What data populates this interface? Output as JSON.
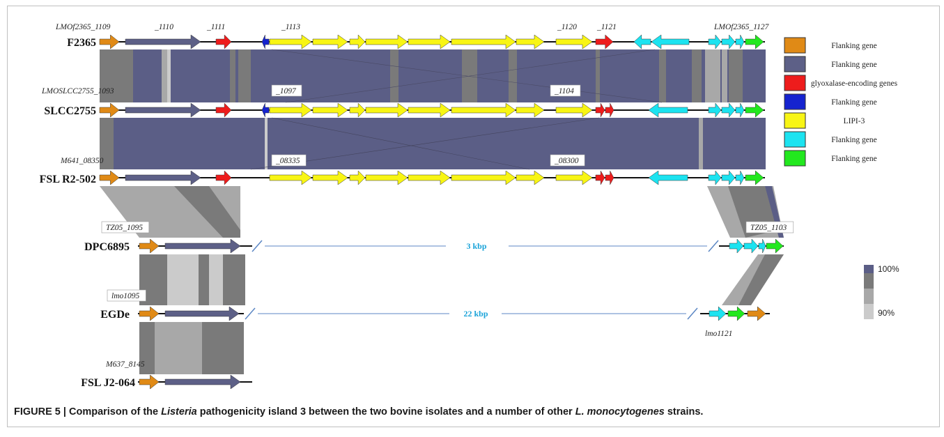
{
  "colors": {
    "orange": "#e08a16",
    "slate": "#5d6087",
    "red": "#ee1c1c",
    "blue": "#1523cf",
    "yellow": "#f8f514",
    "cyan": "#1ce3f0",
    "green": "#22e81e",
    "sim_dark": "#5b5e86",
    "sim_mid": "#7a7a7a",
    "sim_light": "#a8a8a8",
    "sim_pale": "#cbcbcb",
    "gap_line": "#5b86c4"
  },
  "strains": [
    {
      "name": "F2365",
      "locus_labels": [
        {
          "text": "LMOf2365_1109"
        },
        {
          "text": "_1110"
        },
        {
          "text": "_1111"
        },
        {
          "text": "_1113"
        },
        {
          "text": "_1120"
        },
        {
          "text": "_1121"
        },
        {
          "text": "LMOf2365_1127"
        }
      ]
    },
    {
      "name": "SLCC2755",
      "locus_labels": [
        {
          "text": "LMOSLCC2755_1093"
        },
        {
          "text": "_1097"
        },
        {
          "text": "_1104"
        }
      ]
    },
    {
      "name": "FSL R2-502",
      "locus_labels": [
        {
          "text": "M641_08350"
        },
        {
          "text": "_08335"
        },
        {
          "text": "_08300"
        }
      ]
    },
    {
      "name": "DPC6895",
      "locus_labels": [
        {
          "text": "TZ05_1095"
        },
        {
          "text": "TZ05_1103"
        }
      ]
    },
    {
      "name": "EGDe",
      "locus_labels": [
        {
          "text": "lmo1095"
        },
        {
          "text": "lmo1121"
        }
      ]
    },
    {
      "name": "FSL J2-064",
      "locus_labels": [
        {
          "text": "M637_8145"
        }
      ]
    }
  ],
  "gaps": [
    {
      "strain": "DPC6895",
      "label": "3 kbp"
    },
    {
      "strain": "EGDe",
      "label": "22 kbp"
    }
  ],
  "legend": [
    {
      "color_key": "orange",
      "label": "Flanking gene"
    },
    {
      "color_key": "slate",
      "label": "Flanking gene"
    },
    {
      "color_key": "red",
      "label": "glyoxalase-encoding genes"
    },
    {
      "color_key": "blue",
      "label": "Flanking gene"
    },
    {
      "color_key": "yellow",
      "label": "LIPI-3"
    },
    {
      "color_key": "cyan",
      "label": "Flanking gene"
    },
    {
      "color_key": "green",
      "label": "Flanking gene"
    }
  ],
  "similarity_scale": {
    "max_label": "100%",
    "min_label": "90%"
  },
  "caption": {
    "prefix": "FIGURE 5 | Comparison of the ",
    "italic1": "Listeria",
    "middle": " pathogenicity island 3 between the two bovine isolates and a number of other ",
    "italic2": "L. monocytogenes",
    "suffix": " strains."
  }
}
